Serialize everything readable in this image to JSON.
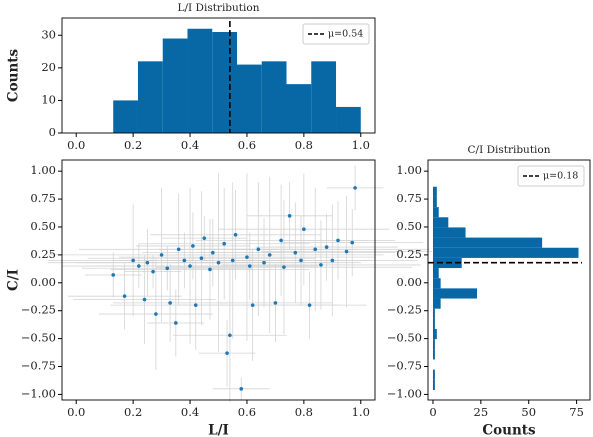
{
  "chart_data": [
    {
      "type": "histogram",
      "orientation": "vertical",
      "title": "L/I Distribution",
      "ylabel": "Counts",
      "bins": [
        0.13,
        0.217,
        0.304,
        0.391,
        0.478,
        0.565,
        0.652,
        0.739,
        0.826,
        0.913,
        1.0
      ],
      "values": [
        10,
        22,
        29,
        32,
        31,
        21,
        22,
        15,
        22,
        8
      ],
      "color": "#0868a6",
      "mean": 0.54,
      "mean_label": "μ=0.54",
      "legend": "upper right",
      "xlim": [
        -0.05,
        1.05
      ],
      "ylim": [
        0,
        35.3
      ],
      "xticks": [
        {
          "value": 0,
          "label": "0.0"
        },
        {
          "value": 0.2,
          "label": "0.2"
        },
        {
          "value": 0.4,
          "label": "0.4"
        },
        {
          "value": 0.6,
          "label": "0.6"
        },
        {
          "value": 0.8,
          "label": "0.8"
        },
        {
          "value": 1,
          "label": "1.0"
        }
      ],
      "yticks": [
        0,
        10,
        20,
        30
      ]
    },
    {
      "type": "scatter",
      "xlabel": "L/I",
      "ylabel": "C/I",
      "color": "#1f77b4",
      "error_color": "#d3d3d3",
      "x": [
        0.13,
        0.17,
        0.2,
        0.22,
        0.24,
        0.25,
        0.27,
        0.28,
        0.3,
        0.32,
        0.33,
        0.35,
        0.36,
        0.38,
        0.4,
        0.41,
        0.42,
        0.44,
        0.45,
        0.47,
        0.48,
        0.5,
        0.52,
        0.53,
        0.54,
        0.55,
        0.56,
        0.58,
        0.6,
        0.61,
        0.62,
        0.64,
        0.66,
        0.68,
        0.7,
        0.72,
        0.73,
        0.75,
        0.77,
        0.79,
        0.8,
        0.82,
        0.84,
        0.86,
        0.88,
        0.9,
        0.92,
        0.95,
        0.97,
        0.98
      ],
      "y": [
        0.07,
        -0.12,
        0.2,
        0.15,
        -0.15,
        0.18,
        0.1,
        -0.28,
        0.25,
        0.13,
        -0.18,
        -0.36,
        0.3,
        0.2,
        0.15,
        0.33,
        -0.2,
        0.22,
        0.4,
        0.12,
        0.27,
        0.18,
        0.35,
        -0.63,
        -0.47,
        0.2,
        0.43,
        -0.95,
        0.23,
        0.15,
        -0.2,
        0.3,
        0.18,
        0.25,
        -0.18,
        0.38,
        0.14,
        0.6,
        0.27,
        0.2,
        0.48,
        -0.2,
        0.3,
        0.16,
        0.32,
        0.2,
        0.38,
        0.28,
        0.36,
        0.85
      ],
      "xerr": [
        0.1,
        0.2,
        0.3,
        0.15,
        0.25,
        0.35,
        0.1,
        0.2,
        0.4,
        0.3,
        0.2,
        0.1,
        0.35,
        0.25,
        0.45,
        0.2,
        0.3,
        0.4,
        0.15,
        0.35,
        0.25,
        0.5,
        0.3,
        0.1,
        0.2,
        0.4,
        0.3,
        0.1,
        0.45,
        0.2,
        0.3,
        0.35,
        0.25,
        0.4,
        0.2,
        0.3,
        0.45,
        0.15,
        0.35,
        0.25,
        0.3,
        0.2,
        0.4,
        0.35,
        0.25,
        0.3,
        0.2,
        0.3,
        0.25,
        0.1
      ],
      "yerr": [
        0.2,
        0.3,
        0.5,
        0.2,
        0.4,
        0.3,
        0.15,
        0.5,
        0.6,
        0.2,
        0.35,
        0.3,
        0.5,
        0.25,
        0.7,
        0.3,
        0.4,
        0.6,
        0.2,
        0.45,
        0.3,
        0.8,
        0.5,
        0.3,
        0.6,
        0.7,
        0.4,
        0.1,
        0.75,
        0.3,
        0.5,
        0.6,
        0.4,
        0.7,
        0.35,
        0.5,
        0.6,
        0.3,
        0.45,
        0.4,
        0.5,
        0.3,
        0.55,
        0.4,
        0.3,
        0.5,
        0.35,
        0.5,
        0.3,
        0.2
      ],
      "xlim": [
        -0.05,
        1.05
      ],
      "ylim": [
        -1.05,
        1.1
      ],
      "xticks": [
        {
          "value": 0,
          "label": "0.0"
        },
        {
          "value": 0.2,
          "label": "0.2"
        },
        {
          "value": 0.4,
          "label": "0.4"
        },
        {
          "value": 0.6,
          "label": "0.6"
        },
        {
          "value": 0.8,
          "label": "0.8"
        },
        {
          "value": 1,
          "label": "1.0"
        }
      ],
      "yticks": [
        {
          "value": -1,
          "label": "−1.00"
        },
        {
          "value": -0.75,
          "label": "−0.75"
        },
        {
          "value": -0.5,
          "label": "−0.50"
        },
        {
          "value": -0.25,
          "label": "−0.25"
        },
        {
          "value": 0,
          "label": "0.00"
        },
        {
          "value": 0.25,
          "label": "0.25"
        },
        {
          "value": 0.5,
          "label": "0.50"
        },
        {
          "value": 0.75,
          "label": "0.75"
        },
        {
          "value": 1,
          "label": "1.00"
        }
      ]
    },
    {
      "type": "histogram",
      "orientation": "horizontal",
      "title": "C/I Distribution",
      "xlabel": "Counts",
      "bins": [
        -0.96,
        -0.869,
        -0.778,
        -0.687,
        -0.596,
        -0.505,
        -0.414,
        -0.323,
        -0.232,
        -0.141,
        -0.05,
        0.041,
        0.132,
        0.223,
        0.314,
        0.405,
        0.496,
        0.587,
        0.678,
        0.769,
        0.86
      ],
      "values": [
        1,
        1,
        0,
        1,
        1,
        2,
        1,
        1,
        4,
        23,
        4,
        3,
        15,
        76,
        57,
        17,
        8,
        3,
        2,
        2
      ],
      "color": "#0868a6",
      "mean": 0.18,
      "mean_label": "μ=0.18",
      "legend": "upper right",
      "xlim": [
        -2.6,
        82
      ],
      "ylim": [
        -1.05,
        1.1
      ],
      "xticks": [
        0,
        25,
        50,
        75
      ],
      "yticks": [
        {
          "value": -1,
          "label": "−1.00"
        },
        {
          "value": -0.75,
          "label": "−0.75"
        },
        {
          "value": -0.5,
          "label": "−0.50"
        },
        {
          "value": -0.25,
          "label": "−0.25"
        },
        {
          "value": 0,
          "label": "0.00"
        },
        {
          "value": 0.25,
          "label": "0.25"
        },
        {
          "value": 0.5,
          "label": "0.50"
        },
        {
          "value": 0.75,
          "label": "0.75"
        },
        {
          "value": 1,
          "label": "1.00"
        }
      ]
    }
  ]
}
